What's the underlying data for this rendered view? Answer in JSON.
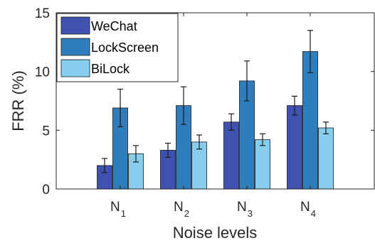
{
  "chart_data": {
    "type": "bar",
    "title": "",
    "xlabel": "Noise levels",
    "ylabel": "FRR (%)",
    "ylim": [
      0,
      15
    ],
    "yticks": [
      0,
      5,
      10,
      15
    ],
    "grid": false,
    "legend_position": "top-left",
    "categories": [
      {
        "base": "N",
        "sub": "1"
      },
      {
        "base": "N",
        "sub": "2"
      },
      {
        "base": "N",
        "sub": "3"
      },
      {
        "base": "N",
        "sub": "4"
      }
    ],
    "series": [
      {
        "name": "WeChat",
        "color": "#3f51b1",
        "values": [
          2.0,
          3.3,
          5.7,
          7.1
        ],
        "errors": [
          0.6,
          0.6,
          0.7,
          0.8
        ]
      },
      {
        "name": "LockScreen",
        "color": "#2f7dbd",
        "values": [
          6.9,
          7.1,
          9.2,
          11.7
        ],
        "errors": [
          1.6,
          1.6,
          1.7,
          1.8
        ]
      },
      {
        "name": "BiLock",
        "color": "#86cdee",
        "values": [
          3.0,
          4.0,
          4.2,
          5.2
        ],
        "errors": [
          0.7,
          0.6,
          0.5,
          0.5
        ]
      }
    ]
  }
}
